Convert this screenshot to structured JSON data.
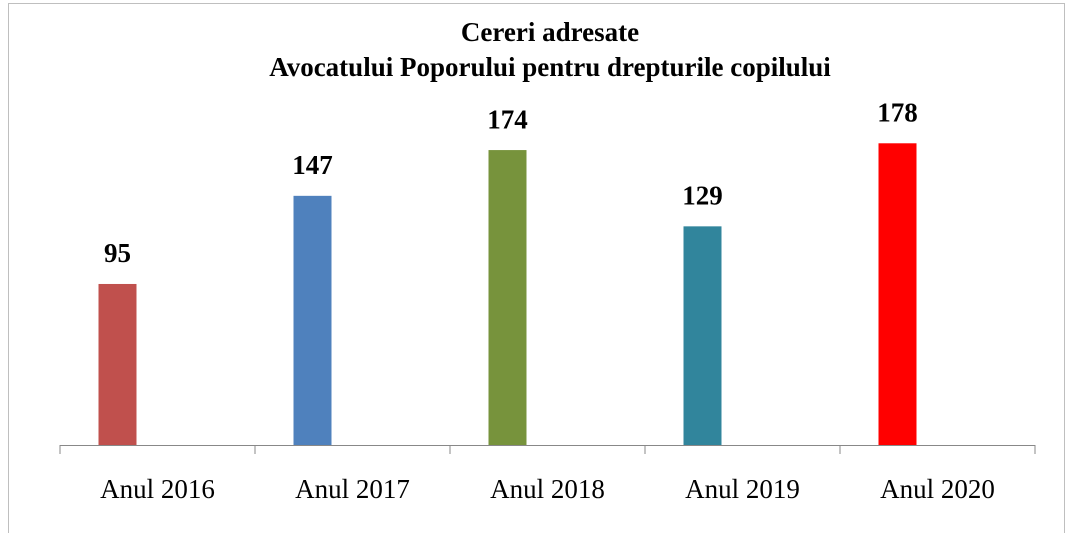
{
  "chart_data": {
    "type": "bar",
    "title": [
      "Cereri adresate",
      "Avocatului Poporului pentru drepturile copilului"
    ],
    "categories": [
      "Anul 2016",
      "Anul 2017",
      "Anul 2018",
      "Anul 2019",
      "Anul 2020"
    ],
    "values": [
      95,
      147,
      174,
      129,
      178
    ],
    "colors": [
      "#c0504d",
      "#4f81bd",
      "#77933c",
      "#31859c",
      "#ff0000"
    ],
    "ylim": [
      0,
      200
    ]
  }
}
